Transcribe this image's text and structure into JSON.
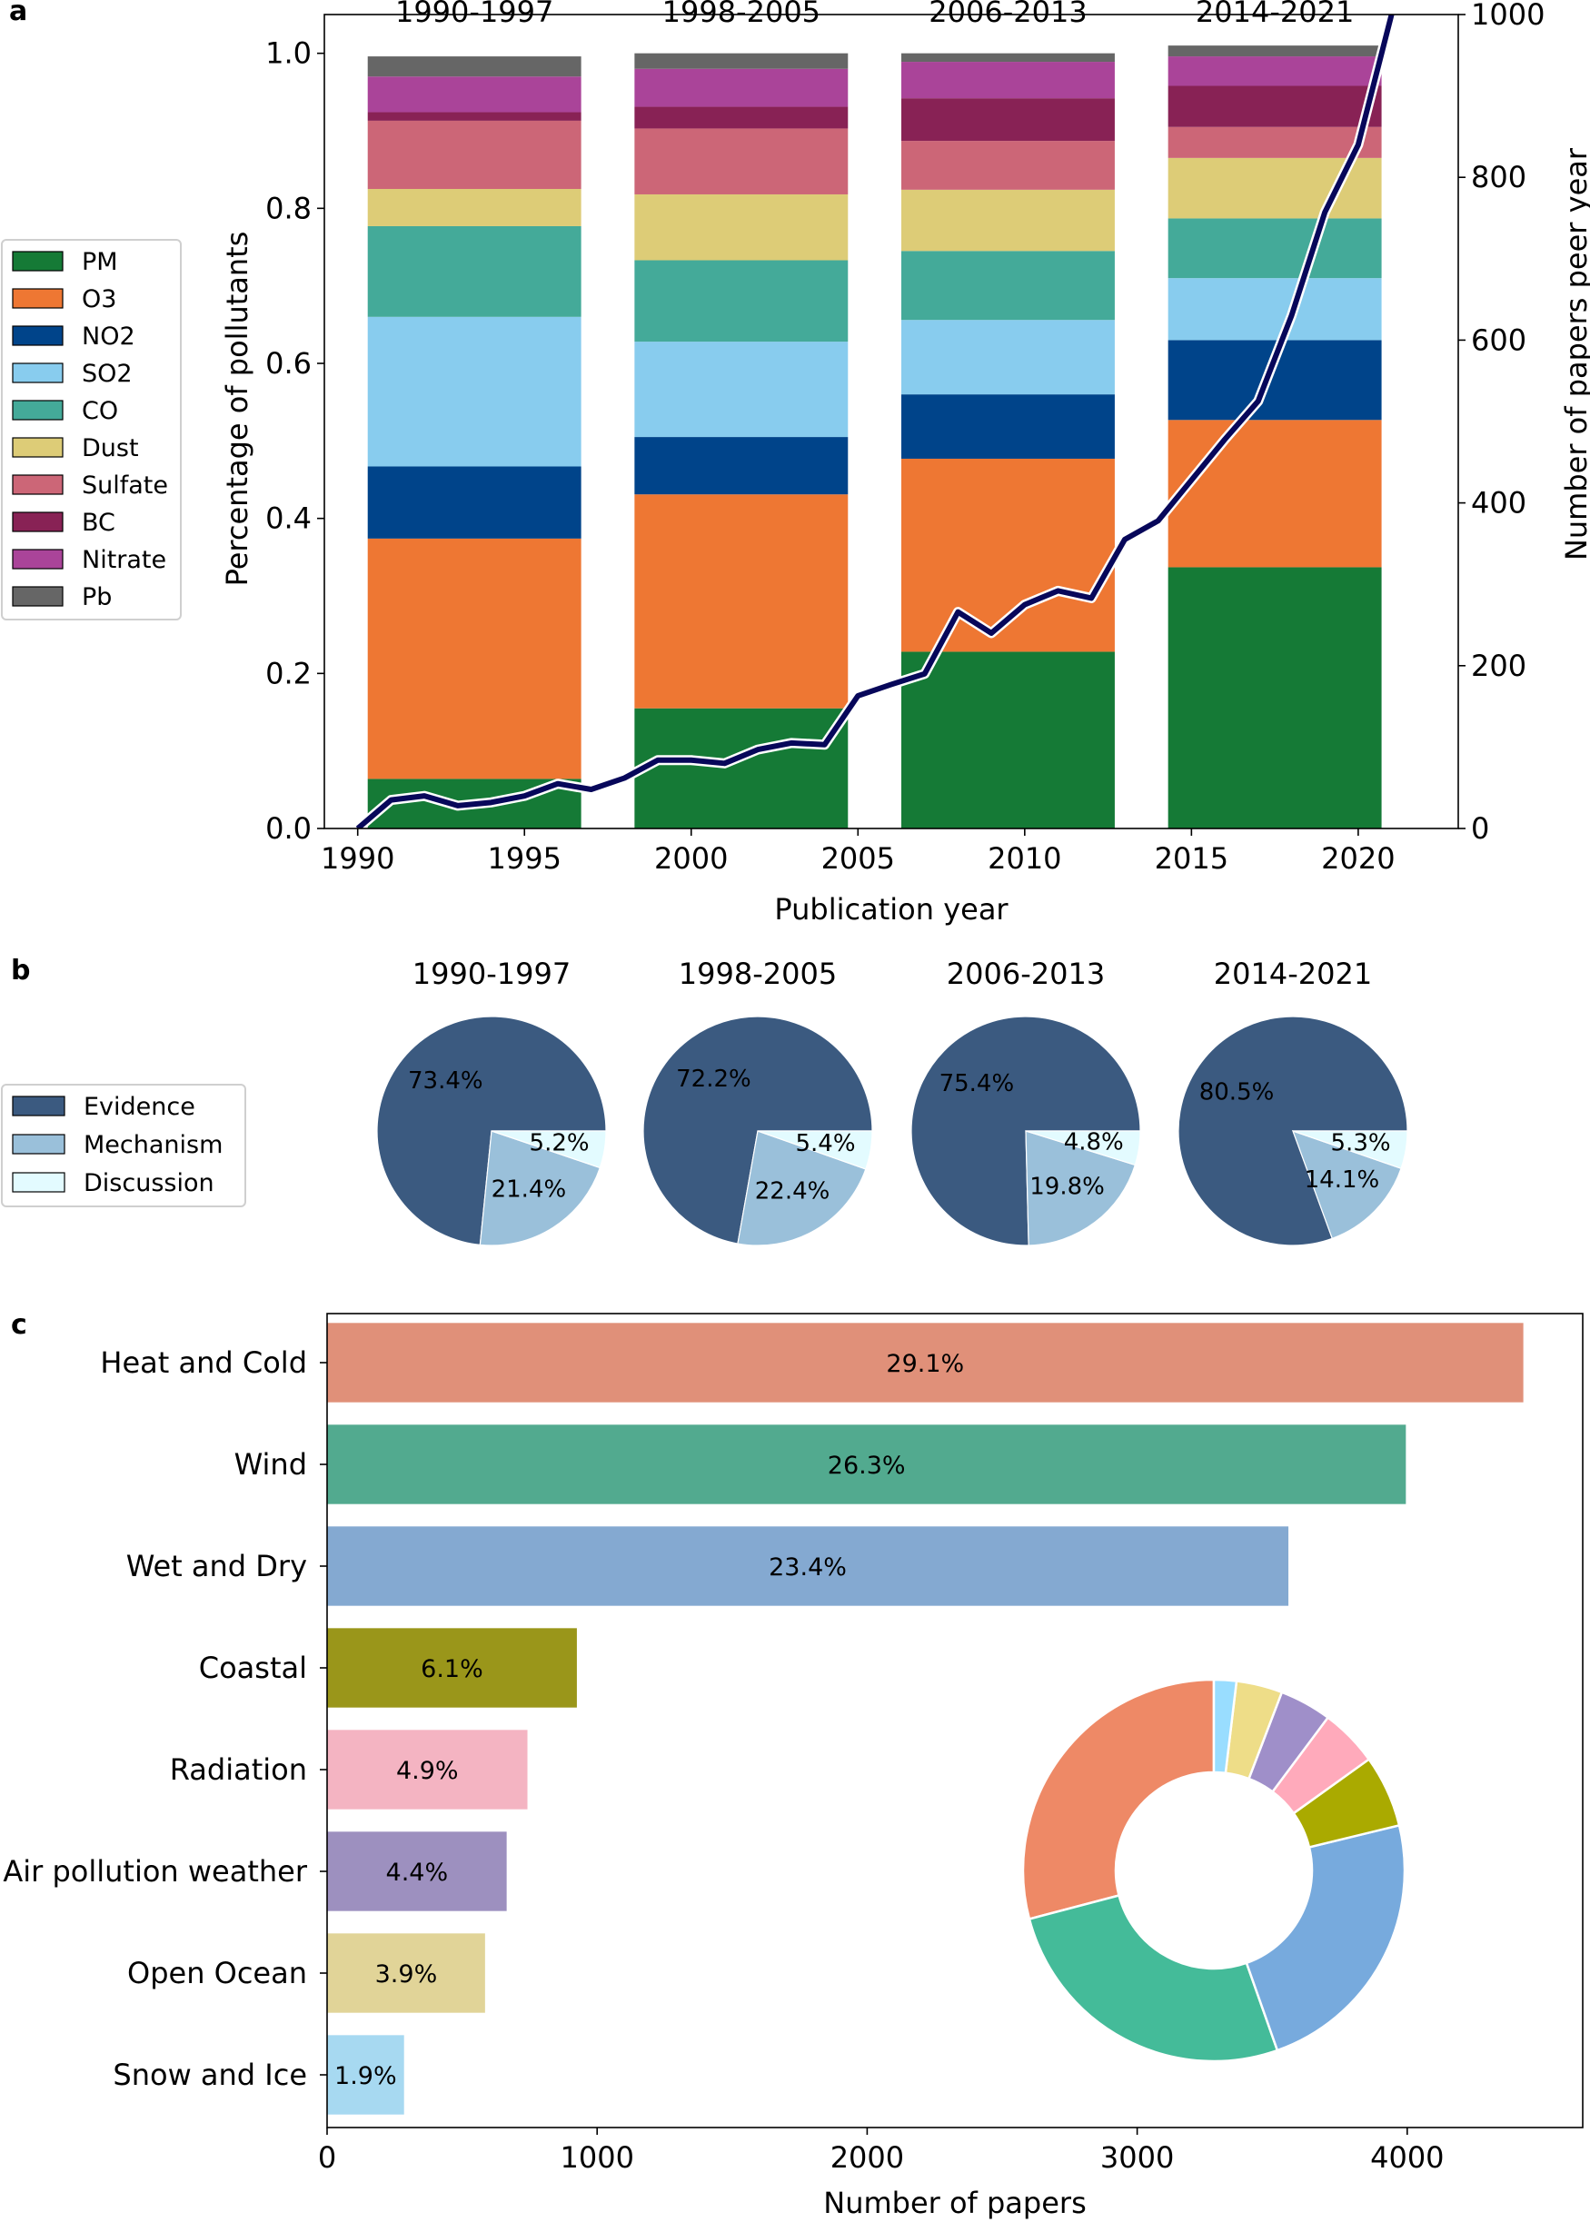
{
  "panels": {
    "a": "a",
    "b": "b",
    "c": "c"
  },
  "chart_data": [
    {
      "type": "bar",
      "id": "panel-a",
      "stacked": true,
      "period_labels": [
        "1990-1997",
        "1998-2005",
        "2006-2013",
        "2014-2021"
      ],
      "period_ranges": [
        [
          1990.3,
          1996.7
        ],
        [
          1998.3,
          2004.7
        ],
        [
          2006.3,
          2012.7
        ],
        [
          2014.3,
          2020.7
        ]
      ],
      "xlabel": "Publication year",
      "ylabel": "Percentage of pollutants",
      "ylabel_right": "Number of papers peer year",
      "xlim": [
        1989,
        2023
      ],
      "ylim": [
        0,
        1.05
      ],
      "ylim_right": [
        0,
        1000
      ],
      "xticks": [
        1990,
        1995,
        2000,
        2005,
        2010,
        2015,
        2020
      ],
      "xtick_labels": [
        "1990",
        "1995",
        "2000",
        "2005",
        "2010",
        "2015",
        "2020"
      ],
      "yticks": [
        0,
        0.2,
        0.4,
        0.6,
        0.8,
        1.0
      ],
      "ytick_labels": [
        "0.0",
        "0.2",
        "0.4",
        "0.6",
        "0.8",
        "1.0"
      ],
      "yticks_right": [
        0,
        200,
        400,
        600,
        800,
        1000
      ],
      "ytick_labels_right": [
        "0",
        "200",
        "400",
        "600",
        "800",
        "1000"
      ],
      "series": [
        {
          "name": "PM",
          "color": "#157a36",
          "values": [
            0.064,
            0.155,
            0.228,
            0.337
          ]
        },
        {
          "name": "O3",
          "color": "#ee7733",
          "values": [
            0.31,
            0.276,
            0.249,
            0.19
          ]
        },
        {
          "name": "NO2",
          "color": "#00448a",
          "values": [
            0.093,
            0.074,
            0.083,
            0.103
          ]
        },
        {
          "name": "SO2",
          "color": "#88ccee",
          "values": [
            0.193,
            0.123,
            0.096,
            0.08
          ]
        },
        {
          "name": "CO",
          "color": "#44aa99",
          "values": [
            0.117,
            0.105,
            0.089,
            0.077
          ]
        },
        {
          "name": "Dust",
          "color": "#ddcc77",
          "values": [
            0.048,
            0.085,
            0.079,
            0.078
          ]
        },
        {
          "name": "Sulfate",
          "color": "#cc6677",
          "values": [
            0.088,
            0.085,
            0.063,
            0.04
          ]
        },
        {
          "name": "BC",
          "color": "#882255",
          "values": [
            0.011,
            0.028,
            0.055,
            0.053
          ]
        },
        {
          "name": "Nitrate",
          "color": "#aa4499",
          "values": [
            0.046,
            0.049,
            0.047,
            0.038
          ]
        },
        {
          "name": "Pb",
          "color": "#666666",
          "values": [
            0.026,
            0.02,
            0.011,
            0.014
          ]
        }
      ],
      "line": {
        "name": "Number of papers per year",
        "color": "#07075a",
        "x": [
          1990,
          1991,
          1992,
          1993,
          1994,
          1995,
          1996,
          1997,
          1998,
          1999,
          2000,
          2001,
          2002,
          2003,
          2004,
          2005,
          2006,
          2007,
          2008,
          2009,
          2010,
          2011,
          2012,
          2013,
          2014,
          2015,
          2016,
          2017,
          2018,
          2019,
          2020,
          2021
        ],
        "y": [
          0,
          35,
          40,
          28,
          32,
          40,
          55,
          48,
          62,
          84,
          84,
          80,
          97,
          105,
          103,
          163,
          177,
          190,
          266,
          240,
          275,
          292,
          283,
          355,
          378,
          428,
          478,
          525,
          630,
          757,
          840,
          1000
        ]
      },
      "legend": [
        "PM",
        "O3",
        "NO2",
        "SO2",
        "CO",
        "Dust",
        "Sulfate",
        "BC",
        "Nitrate",
        "Pb"
      ],
      "legend_position": "left"
    },
    {
      "type": "pie",
      "id": "panel-b",
      "categories": [
        "Evidence",
        "Mechanism",
        "Discussion"
      ],
      "colors": [
        "#3b5a80",
        "#9ac0da",
        "#e3fbff"
      ],
      "pies": [
        {
          "title": "1990-1997",
          "values": [
            73.4,
            21.4,
            5.2
          ],
          "labels": [
            "73.4%",
            "21.4%",
            "5.2%"
          ]
        },
        {
          "title": "1998-2005",
          "values": [
            72.2,
            22.4,
            5.4
          ],
          "labels": [
            "72.2%",
            "22.4%",
            "5.4%"
          ]
        },
        {
          "title": "2006-2013",
          "values": [
            75.4,
            19.8,
            4.8
          ],
          "labels": [
            "75.4%",
            "19.8%",
            "4.8%"
          ]
        },
        {
          "title": "2014-2021",
          "values": [
            80.5,
            14.1,
            5.3
          ],
          "labels": [
            "80.5%",
            "14.1%",
            "5.3%"
          ]
        }
      ],
      "legend_position": "left"
    },
    {
      "type": "bar",
      "id": "panel-c",
      "orientation": "horizontal",
      "categories": [
        "Heat and Cold",
        "Wind",
        "Wet and Dry",
        "Coastal",
        "Radiation",
        "Air pollution weather",
        "Open Ocean",
        "Snow and Ice"
      ],
      "values": [
        4430,
        3995,
        3560,
        925,
        742,
        665,
        585,
        285
      ],
      "percent_labels": [
        "29.1%",
        "26.3%",
        "23.4%",
        "6.1%",
        "4.9%",
        "4.4%",
        "3.9%",
        "1.9%"
      ],
      "colors": [
        "#e09079",
        "#52aa8f",
        "#84a9d1",
        "#9a961a",
        "#f4b4c2",
        "#9d90bf",
        "#e1d498",
        "#a7d9f1"
      ],
      "xlabel": "Number of papers",
      "xlim": [
        0,
        4650
      ],
      "xticks": [
        0,
        1000,
        2000,
        3000,
        4000
      ],
      "xtick_labels": [
        "0",
        "1000",
        "2000",
        "3000",
        "4000"
      ],
      "donut": {
        "type": "pie",
        "values": [
          29.1,
          26.3,
          23.4,
          6.1,
          4.9,
          4.4,
          3.9,
          1.9
        ],
        "colors": [
          "#ee8966",
          "#44bb99",
          "#77aadd",
          "#aaaa00",
          "#ffaabb",
          "#9f8fc9",
          "#eedd88",
          "#99ddff"
        ]
      }
    }
  ]
}
